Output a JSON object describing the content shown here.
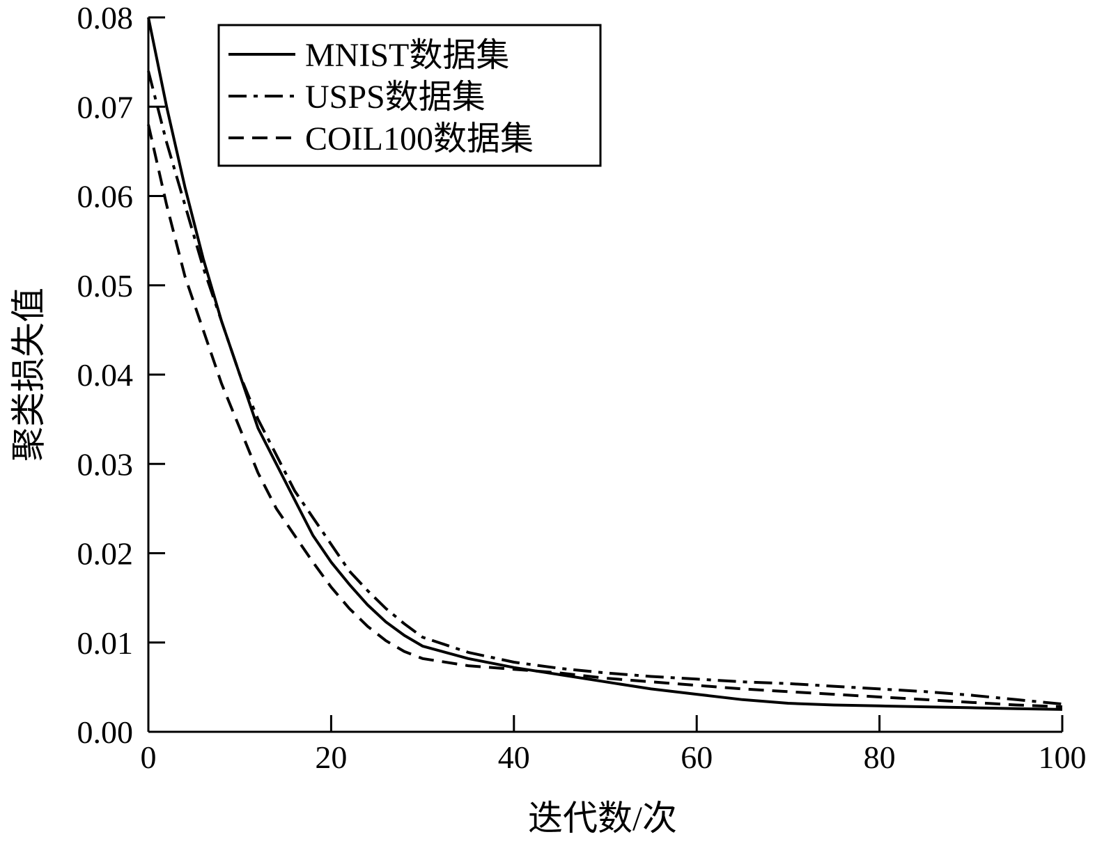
{
  "chart_data": {
    "type": "line",
    "title": "",
    "xlabel": "迭代数/次",
    "ylabel": "聚类损失值",
    "xlim": [
      0,
      100
    ],
    "ylim": [
      0,
      0.08
    ],
    "x_ticks": [
      0,
      20,
      40,
      60,
      80,
      100
    ],
    "y_ticks": [
      0.0,
      0.01,
      0.02,
      0.03,
      0.04,
      0.05,
      0.06,
      0.07,
      0.08
    ],
    "x_tick_labels": [
      "0",
      "20",
      "40",
      "60",
      "80",
      "100"
    ],
    "y_tick_labels": [
      "0.00",
      "0.01",
      "0.02",
      "0.03",
      "0.04",
      "0.05",
      "0.06",
      "0.07",
      "0.08"
    ],
    "grid": false,
    "legend_position": "top-left",
    "series": [
      {
        "name": "MNIST数据集",
        "style": "solid",
        "color": "#000000",
        "x": [
          0,
          2,
          4,
          6,
          8,
          10,
          12,
          14,
          16,
          18,
          20,
          22,
          24,
          26,
          28,
          30,
          35,
          40,
          45,
          50,
          55,
          60,
          65,
          70,
          75,
          80,
          85,
          90,
          95,
          100
        ],
        "y": [
          0.08,
          0.07,
          0.061,
          0.053,
          0.046,
          0.04,
          0.034,
          0.03,
          0.026,
          0.022,
          0.019,
          0.0165,
          0.0142,
          0.0123,
          0.0108,
          0.0096,
          0.0082,
          0.0072,
          0.0064,
          0.0056,
          0.0048,
          0.0042,
          0.0036,
          0.0032,
          0.003,
          0.0029,
          0.0028,
          0.0027,
          0.0026,
          0.0025
        ]
      },
      {
        "name": "USPS数据集",
        "style": "dash-dot",
        "color": "#000000",
        "x": [
          0,
          2,
          4,
          6,
          8,
          10,
          12,
          14,
          16,
          18,
          20,
          22,
          24,
          26,
          28,
          30,
          35,
          40,
          45,
          50,
          55,
          60,
          65,
          70,
          75,
          80,
          85,
          90,
          95,
          100
        ],
        "y": [
          0.074,
          0.066,
          0.059,
          0.052,
          0.046,
          0.04,
          0.035,
          0.031,
          0.027,
          0.024,
          0.021,
          0.018,
          0.0158,
          0.0138,
          0.0121,
          0.0106,
          0.0089,
          0.0078,
          0.0071,
          0.0066,
          0.0062,
          0.0059,
          0.0056,
          0.0054,
          0.0051,
          0.0048,
          0.0045,
          0.0041,
          0.0036,
          0.0031
        ]
      },
      {
        "name": "COIL100数据集",
        "style": "dashed",
        "color": "#000000",
        "x": [
          0,
          2,
          4,
          6,
          8,
          10,
          12,
          14,
          16,
          18,
          20,
          22,
          24,
          26,
          28,
          30,
          35,
          40,
          45,
          50,
          55,
          60,
          65,
          70,
          75,
          80,
          85,
          90,
          95,
          100
        ],
        "y": [
          0.068,
          0.059,
          0.051,
          0.045,
          0.039,
          0.034,
          0.029,
          0.025,
          0.022,
          0.019,
          0.0162,
          0.0138,
          0.0118,
          0.0102,
          0.009,
          0.0082,
          0.0074,
          0.007,
          0.0066,
          0.006,
          0.0056,
          0.0052,
          0.0048,
          0.0045,
          0.0042,
          0.0039,
          0.0036,
          0.0033,
          0.003,
          0.0028
        ]
      }
    ]
  }
}
